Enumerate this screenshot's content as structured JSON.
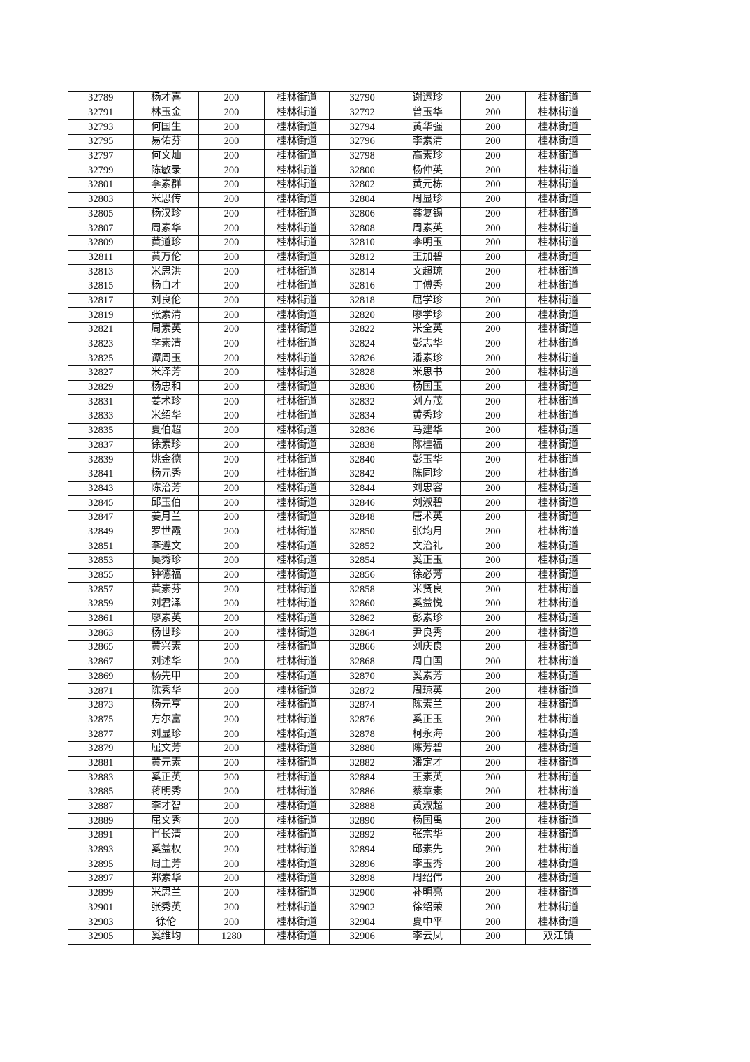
{
  "rows": [
    [
      "32789",
      "杨才喜",
      "200",
      "桂林街道",
      "32790",
      "谢运珍",
      "200",
      "桂林街道"
    ],
    [
      "32791",
      "林玉金",
      "200",
      "桂林街道",
      "32792",
      "曾玉华",
      "200",
      "桂林街道"
    ],
    [
      "32793",
      "何国生",
      "200",
      "桂林街道",
      "32794",
      "黄华强",
      "200",
      "桂林街道"
    ],
    [
      "32795",
      "易佑芬",
      "200",
      "桂林街道",
      "32796",
      "李素清",
      "200",
      "桂林街道"
    ],
    [
      "32797",
      "何文灿",
      "200",
      "桂林街道",
      "32798",
      "高素珍",
      "200",
      "桂林街道"
    ],
    [
      "32799",
      "陈敏录",
      "200",
      "桂林街道",
      "32800",
      "杨仲英",
      "200",
      "桂林街道"
    ],
    [
      "32801",
      "李素群",
      "200",
      "桂林街道",
      "32802",
      "黄元栋",
      "200",
      "桂林街道"
    ],
    [
      "32803",
      "米思传",
      "200",
      "桂林街道",
      "32804",
      "周显珍",
      "200",
      "桂林街道"
    ],
    [
      "32805",
      "杨汉珍",
      "200",
      "桂林街道",
      "32806",
      "龚复锡",
      "200",
      "桂林街道"
    ],
    [
      "32807",
      "周素华",
      "200",
      "桂林街道",
      "32808",
      "周素英",
      "200",
      "桂林街道"
    ],
    [
      "32809",
      "黄道珍",
      "200",
      "桂林街道",
      "32810",
      "李明玉",
      "200",
      "桂林街道"
    ],
    [
      "32811",
      "黄万伦",
      "200",
      "桂林街道",
      "32812",
      "王加碧",
      "200",
      "桂林街道"
    ],
    [
      "32813",
      "米思洪",
      "200",
      "桂林街道",
      "32814",
      "文超琼",
      "200",
      "桂林街道"
    ],
    [
      "32815",
      "杨自才",
      "200",
      "桂林街道",
      "32816",
      "丁傅秀",
      "200",
      "桂林街道"
    ],
    [
      "32817",
      "刘良伦",
      "200",
      "桂林街道",
      "32818",
      "屈学珍",
      "200",
      "桂林街道"
    ],
    [
      "32819",
      "张素清",
      "200",
      "桂林街道",
      "32820",
      "廖学珍",
      "200",
      "桂林街道"
    ],
    [
      "32821",
      "周素英",
      "200",
      "桂林街道",
      "32822",
      "米全英",
      "200",
      "桂林街道"
    ],
    [
      "32823",
      "李素清",
      "200",
      "桂林街道",
      "32824",
      "彭志华",
      "200",
      "桂林街道"
    ],
    [
      "32825",
      "谭周玉",
      "200",
      "桂林街道",
      "32826",
      "潘素珍",
      "200",
      "桂林街道"
    ],
    [
      "32827",
      "米泽芳",
      "200",
      "桂林街道",
      "32828",
      "米思书",
      "200",
      "桂林街道"
    ],
    [
      "32829",
      "杨忠和",
      "200",
      "桂林街道",
      "32830",
      "杨国玉",
      "200",
      "桂林街道"
    ],
    [
      "32831",
      "姜术珍",
      "200",
      "桂林街道",
      "32832",
      "刘方茂",
      "200",
      "桂林街道"
    ],
    [
      "32833",
      "米绍华",
      "200",
      "桂林街道",
      "32834",
      "黄秀珍",
      "200",
      "桂林街道"
    ],
    [
      "32835",
      "夏伯超",
      "200",
      "桂林街道",
      "32836",
      "马建华",
      "200",
      "桂林街道"
    ],
    [
      "32837",
      "徐素珍",
      "200",
      "桂林街道",
      "32838",
      "陈桂福",
      "200",
      "桂林街道"
    ],
    [
      "32839",
      "姚金德",
      "200",
      "桂林街道",
      "32840",
      "彭玉华",
      "200",
      "桂林街道"
    ],
    [
      "32841",
      "杨元秀",
      "200",
      "桂林街道",
      "32842",
      "陈同珍",
      "200",
      "桂林街道"
    ],
    [
      "32843",
      "陈治芳",
      "200",
      "桂林街道",
      "32844",
      "刘忠容",
      "200",
      "桂林街道"
    ],
    [
      "32845",
      "邱玉伯",
      "200",
      "桂林街道",
      "32846",
      "刘淑碧",
      "200",
      "桂林街道"
    ],
    [
      "32847",
      "姜月兰",
      "200",
      "桂林街道",
      "32848",
      "唐术英",
      "200",
      "桂林街道"
    ],
    [
      "32849",
      "罗世霞",
      "200",
      "桂林街道",
      "32850",
      "张均月",
      "200",
      "桂林街道"
    ],
    [
      "32851",
      "李遵文",
      "200",
      "桂林街道",
      "32852",
      "文治礼",
      "200",
      "桂林街道"
    ],
    [
      "32853",
      "吴秀珍",
      "200",
      "桂林街道",
      "32854",
      "奚正玉",
      "200",
      "桂林街道"
    ],
    [
      "32855",
      "钟德福",
      "200",
      "桂林街道",
      "32856",
      "徐必芳",
      "200",
      "桂林街道"
    ],
    [
      "32857",
      "黄素芬",
      "200",
      "桂林街道",
      "32858",
      "米贤良",
      "200",
      "桂林街道"
    ],
    [
      "32859",
      "刘君泽",
      "200",
      "桂林街道",
      "32860",
      "奚益悦",
      "200",
      "桂林街道"
    ],
    [
      "32861",
      "廖素英",
      "200",
      "桂林街道",
      "32862",
      "彭素珍",
      "200",
      "桂林街道"
    ],
    [
      "32863",
      "杨世珍",
      "200",
      "桂林街道",
      "32864",
      "尹良秀",
      "200",
      "桂林街道"
    ],
    [
      "32865",
      "黄兴素",
      "200",
      "桂林街道",
      "32866",
      "刘庆良",
      "200",
      "桂林街道"
    ],
    [
      "32867",
      "刘述华",
      "200",
      "桂林街道",
      "32868",
      "周自国",
      "200",
      "桂林街道"
    ],
    [
      "32869",
      "杨先甲",
      "200",
      "桂林街道",
      "32870",
      "奚素芳",
      "200",
      "桂林街道"
    ],
    [
      "32871",
      "陈秀华",
      "200",
      "桂林街道",
      "32872",
      "周琼英",
      "200",
      "桂林街道"
    ],
    [
      "32873",
      "杨元亨",
      "200",
      "桂林街道",
      "32874",
      "陈素兰",
      "200",
      "桂林街道"
    ],
    [
      "32875",
      "方尔富",
      "200",
      "桂林街道",
      "32876",
      "奚正玉",
      "200",
      "桂林街道"
    ],
    [
      "32877",
      "刘显珍",
      "200",
      "桂林街道",
      "32878",
      "柯永海",
      "200",
      "桂林街道"
    ],
    [
      "32879",
      "屈文芳",
      "200",
      "桂林街道",
      "32880",
      "陈芳碧",
      "200",
      "桂林街道"
    ],
    [
      "32881",
      "黄元素",
      "200",
      "桂林街道",
      "32882",
      "潘定才",
      "200",
      "桂林街道"
    ],
    [
      "32883",
      "奚正英",
      "200",
      "桂林街道",
      "32884",
      "王素英",
      "200",
      "桂林街道"
    ],
    [
      "32885",
      "蒋明秀",
      "200",
      "桂林街道",
      "32886",
      "蔡章素",
      "200",
      "桂林街道"
    ],
    [
      "32887",
      "李才智",
      "200",
      "桂林街道",
      "32888",
      "黄淑超",
      "200",
      "桂林街道"
    ],
    [
      "32889",
      "屈文秀",
      "200",
      "桂林街道",
      "32890",
      "杨国禹",
      "200",
      "桂林街道"
    ],
    [
      "32891",
      "肖长清",
      "200",
      "桂林街道",
      "32892",
      "张宗华",
      "200",
      "桂林街道"
    ],
    [
      "32893",
      "奚益权",
      "200",
      "桂林街道",
      "32894",
      "邱素先",
      "200",
      "桂林街道"
    ],
    [
      "32895",
      "周主芳",
      "200",
      "桂林街道",
      "32896",
      "李玉秀",
      "200",
      "桂林街道"
    ],
    [
      "32897",
      "郑素华",
      "200",
      "桂林街道",
      "32898",
      "周绍伟",
      "200",
      "桂林街道"
    ],
    [
      "32899",
      "米思兰",
      "200",
      "桂林街道",
      "32900",
      "补明亮",
      "200",
      "桂林街道"
    ],
    [
      "32901",
      "张秀英",
      "200",
      "桂林街道",
      "32902",
      "徐绍荣",
      "200",
      "桂林街道"
    ],
    [
      "32903",
      "徐伦",
      "200",
      "桂林街道",
      "32904",
      "夏中平",
      "200",
      "桂林街道"
    ],
    [
      "32905",
      "奚维均",
      "1280",
      "桂林街道",
      "32906",
      "李云凤",
      "200",
      "双江镇"
    ]
  ]
}
